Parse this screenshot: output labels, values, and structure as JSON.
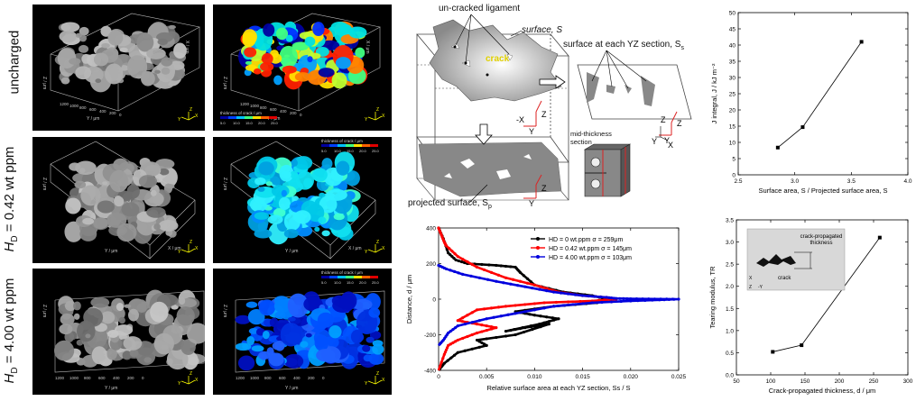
{
  "rows": [
    {
      "label": "uncharged"
    },
    {
      "label": "H",
      "sub": "D",
      "rest": " = 0.42 wt ppm"
    },
    {
      "label": "H",
      "sub": "D",
      "rest": " = 4.00 wt ppm"
    }
  ],
  "render": {
    "axis_x": "X / μm",
    "axis_y": "Y / μm",
    "axis_z": "Z / μm",
    "colorbar_title": "thickness of crack / μm",
    "colorbar_ticks": [
      "5.0",
      "10.0",
      "15.0",
      "20.0",
      "25.0"
    ],
    "y_ticks": [
      "1200",
      "1000",
      "800",
      "600",
      "400",
      "200",
      "0"
    ],
    "x_ticks": [
      "200",
      "400",
      "600",
      "800",
      "1000"
    ],
    "triad": [
      "Y",
      "X",
      "Z"
    ]
  },
  "schematic": {
    "uncracked_ligament": "un-cracked ligament",
    "surface": "surface, S",
    "crack": "crack",
    "surface_yz": "surface at each YZ section, S",
    "surface_yz_sub": "s",
    "projected": "projected surface, S",
    "projected_sub": "p",
    "mid_thickness": "mid-thickness\nsection",
    "axes": {
      "x": "X",
      "neg_x": "-X",
      "y": "Y",
      "z": "Z"
    }
  },
  "chart_data": [
    {
      "type": "line",
      "xlabel": "Surface area, S / Projected surface area, Sp",
      "ylabel": "J integral, J / kJ m⁻²",
      "xlim": [
        2.5,
        4.0
      ],
      "ylim": [
        0,
        50
      ],
      "xticks": [
        "2.5",
        "3.0",
        "3.5",
        "4.0"
      ],
      "yticks": [
        "0",
        "5",
        "10",
        "15",
        "20",
        "25",
        "30",
        "35",
        "40",
        "45",
        "50"
      ],
      "series": [
        {
          "x": [
            2.85,
            3.07,
            3.59
          ],
          "y": [
            8.4,
            14.7,
            41.0
          ]
        }
      ]
    },
    {
      "type": "line",
      "xlabel": "Relative surface area at each YZ section, Ss / S",
      "ylabel": "Distance, d / μm",
      "xlim": [
        0,
        0.025
      ],
      "ylim": [
        -400,
        400
      ],
      "xticks": [
        "0",
        "0.005",
        "0.010",
        "0.015",
        "0.020",
        "0.025"
      ],
      "yticks": [
        "-400",
        "-200",
        "0",
        "200",
        "400"
      ],
      "legend": "top-right",
      "series": [
        {
          "name": "HD = 0 wt.ppm σ = 259μm",
          "color": "#000000",
          "x": [
            0.0,
            0.0005,
            0.001,
            0.0018,
            0.003,
            0.006,
            0.008,
            0.0085,
            0.01,
            0.013,
            0.016,
            0.0175,
            0.0165,
            0.012,
            0.008,
            0.01,
            0.0125,
            0.0105,
            0.007,
            0.009,
            0.0115,
            0.008,
            0.004,
            0.005,
            0.002,
            0.0006,
            0.0
          ],
          "y": [
            400,
            340,
            260,
            220,
            200,
            190,
            180,
            150,
            80,
            40,
            20,
            0,
            -20,
            -40,
            -70,
            -90,
            -110,
            -140,
            -180,
            -160,
            -140,
            -200,
            -230,
            -260,
            -300,
            -360,
            -400
          ]
        },
        {
          "name": "HD = 0.42 wt.ppm σ = 145μm",
          "color": "#ff0000",
          "x": [
            0.0,
            0.0003,
            0.0006,
            0.0008,
            0.002,
            0.004,
            0.007,
            0.01,
            0.0125,
            0.015,
            0.0175,
            0.0185,
            0.016,
            0.011,
            0.007,
            0.004,
            0.002,
            0.004,
            0.006,
            0.004,
            0.002,
            0.001,
            0.0006,
            0.0
          ],
          "y": [
            400,
            360,
            320,
            300,
            240,
            180,
            120,
            80,
            40,
            20,
            10,
            0,
            -10,
            -20,
            -40,
            -60,
            -120,
            -140,
            -160,
            -190,
            -230,
            -260,
            -310,
            -400
          ]
        },
        {
          "name": "HD = 4.00 wt.ppm σ = 103μm",
          "color": "#0000dd",
          "x": [
            0.0,
            0.0008,
            0.0025,
            0.006,
            0.009,
            0.012,
            0.015,
            0.0175,
            0.0185,
            0.02,
            0.0225,
            0.025,
            0.023,
            0.02,
            0.016,
            0.012,
            0.008,
            0.005,
            0.002,
            0.001,
            0.0005,
            0.0
          ],
          "y": [
            190,
            170,
            140,
            100,
            70,
            40,
            20,
            10,
            4,
            2,
            1,
            0,
            -4,
            -10,
            -20,
            -40,
            -80,
            -110,
            -150,
            -190,
            -230,
            -260
          ]
        }
      ]
    },
    {
      "type": "line",
      "xlabel": "Crack-propagated thickness, d / μm",
      "ylabel": "Tearing modulus, TR",
      "xlim": [
        50,
        300
      ],
      "ylim": [
        0,
        3.5
      ],
      "xticks": [
        "50",
        "100",
        "150",
        "200",
        "250",
        "300"
      ],
      "yticks": [
        "0.0",
        "0.5",
        "1.0",
        "1.5",
        "2.0",
        "2.5",
        "3.0",
        "3.5"
      ],
      "inset": {
        "title": "crack-propagated\nthickness",
        "crack": "crack"
      },
      "series": [
        {
          "x": [
            103,
            145,
            259
          ],
          "y": [
            0.52,
            0.67,
            3.1
          ]
        }
      ]
    }
  ]
}
